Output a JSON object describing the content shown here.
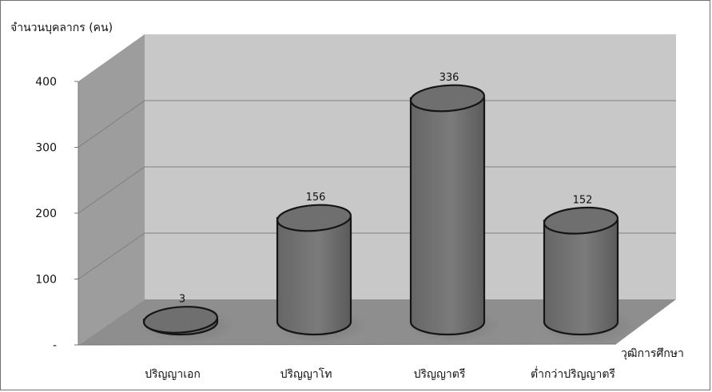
{
  "chart_data": {
    "type": "bar",
    "style": "3d-cylinder",
    "categories": [
      "ปริญญาเอก",
      "ปริญญาโท",
      "ปริญญาตรี",
      "ต่ำกว่าปริญญาตรี"
    ],
    "values": [
      3,
      156,
      336,
      152
    ],
    "data_labels": [
      "3",
      "156",
      "336",
      "152"
    ],
    "ylabel": "จำนวนบุคลากร (คน)",
    "xlabel": "วุฒิการศึกษา",
    "ylim": [
      0,
      400
    ],
    "yticks": [
      {
        "value": 0,
        "label": "-"
      },
      {
        "value": 100,
        "label": "100"
      },
      {
        "value": 200,
        "label": "200"
      },
      {
        "value": 300,
        "label": "300"
      },
      {
        "value": 400,
        "label": "400"
      }
    ],
    "grid": true,
    "colors": {
      "wall_back": "#c8c8c8",
      "wall_side": "#9d9d9d",
      "floor": "#8e8e8e",
      "bar_fill": "#777777",
      "bar_top": "#6f6f6f",
      "bar_stroke": "#151515",
      "gridline": "#7f7f7f",
      "axis": "#777777"
    }
  }
}
